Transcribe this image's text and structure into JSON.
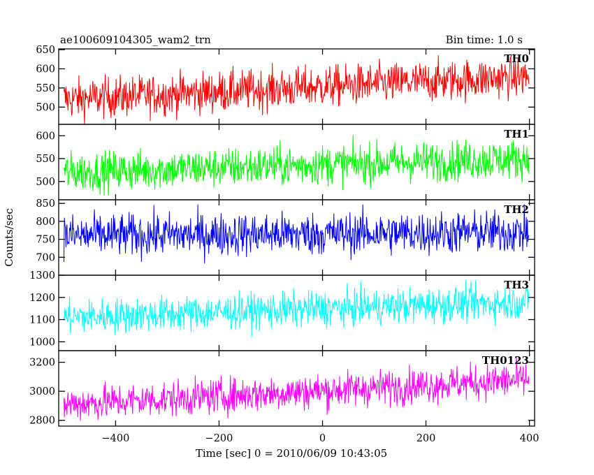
{
  "chart_data": {
    "type": "line",
    "title": "ae100609104305_wam2_trn",
    "subtitle": "Bin time: 1.0 s",
    "xlabel": "Time [sec] 0 = 2010/06/09 10:43:05",
    "ylabel": "Counts/sec",
    "xlim": [
      -510,
      410
    ],
    "xticks": [
      -400,
      -200,
      0,
      200,
      400
    ],
    "xtick_labels": [
      "−400",
      "−200",
      "0",
      "200",
      "400"
    ],
    "panels": [
      {
        "name": "TH0",
        "color": "#ff0000",
        "ylim": [
          455,
          652
        ],
        "yticks": [
          500,
          550,
          600,
          650
        ],
        "yticks_labels": [
          "500",
          "550",
          "600",
          "650"
        ],
        "start": 520,
        "end": 580,
        "noise": 27
      },
      {
        "name": "TH1",
        "color": "#00ff00",
        "ylim": [
          460,
          625
        ],
        "yticks": [
          500,
          550,
          600
        ],
        "yticks_labels": [
          "500",
          "550",
          "600"
        ],
        "start": 520,
        "end": 550,
        "noise": 22
      },
      {
        "name": "TH2",
        "color": "#0000ff",
        "ylim": [
          650,
          860
        ],
        "yticks": [
          700,
          750,
          800,
          850
        ],
        "yticks_labels": [
          "700",
          "750",
          "800",
          "850"
        ],
        "start": 760,
        "end": 770,
        "noise": 30
      },
      {
        "name": "TH3",
        "color": "#00ffff",
        "ylim": [
          960,
          1300
        ],
        "yticks": [
          1000,
          1100,
          1200,
          1300
        ],
        "yticks_labels": [
          "1000",
          "1100",
          "1200",
          "1300"
        ],
        "start": 1110,
        "end": 1180,
        "noise": 40
      },
      {
        "name": "TH0123",
        "color": "#ff00ff",
        "ylim": [
          2760,
          3280
        ],
        "yticks": [
          2800,
          3000,
          3200
        ],
        "yticks_labels": [
          "2800",
          "3000",
          "3200"
        ],
        "start": 2910,
        "end": 3080,
        "noise": 62
      }
    ]
  }
}
